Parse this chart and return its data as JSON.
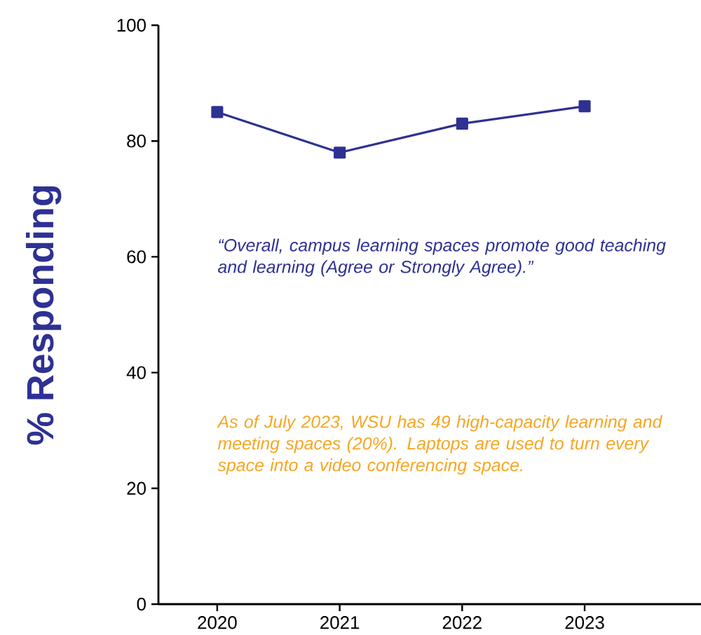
{
  "chart_data": {
    "type": "line",
    "ylabel": "% Responding",
    "categories": [
      "2020",
      "2021",
      "2022",
      "2023"
    ],
    "series": [
      {
        "color": "#2e3192",
        "values": [
          85,
          78,
          83,
          86
        ]
      }
    ],
    "ylim": [
      0,
      100
    ],
    "yticks": [
      0,
      20,
      40,
      60,
      80,
      100
    ],
    "marker": "square",
    "line_style": "solid",
    "annotations": [
      "“Overall, campus learning spaces promote good teaching and learning (Agree or Strongly Agree).”",
      "As of July 2023, WSU has 49 high-capacity learning and meeting spaces (20%). Laptops are used to turn every space into a video conferencing space."
    ]
  }
}
